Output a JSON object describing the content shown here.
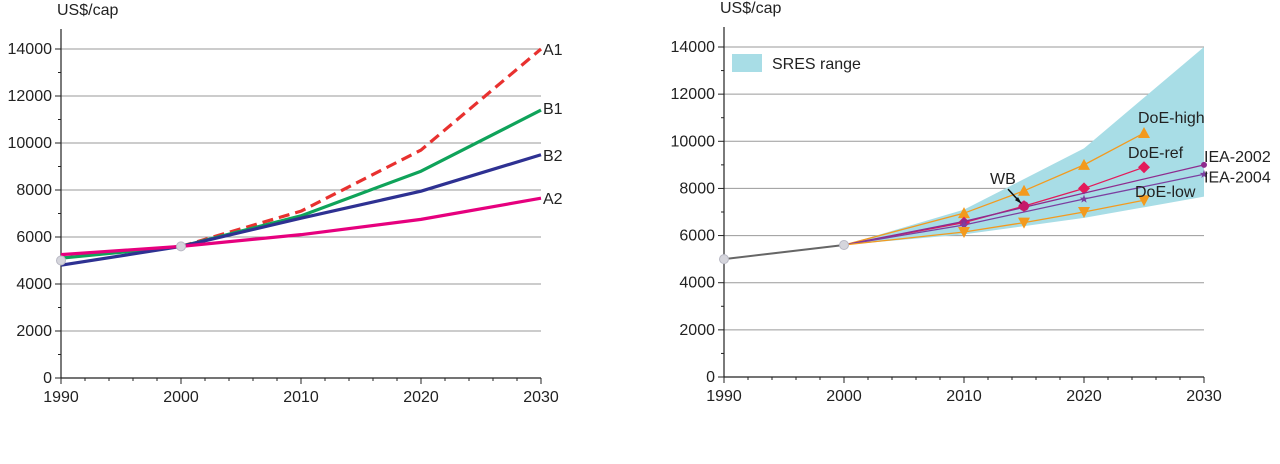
{
  "chart_data": [
    {
      "type": "line",
      "title": "",
      "xlabel": "",
      "ylabel": "US$/cap",
      "xlim": [
        1990,
        2030
      ],
      "ylim": [
        0,
        14000
      ],
      "xticks": [
        1990,
        2000,
        2010,
        2020,
        2030
      ],
      "yticks": [
        0,
        2000,
        4000,
        6000,
        8000,
        10000,
        12000,
        14000
      ],
      "grid": true,
      "markers": [
        {
          "x": 1990,
          "y": 5000
        },
        {
          "x": 2000,
          "y": 5600
        }
      ],
      "series": [
        {
          "name": "A1",
          "color": "#e8312f",
          "dashed": true,
          "x": [
            2000,
            2010,
            2020,
            2030
          ],
          "y": [
            5600,
            7100,
            9700,
            14000
          ]
        },
        {
          "name": "B1",
          "color": "#0fa35a",
          "dashed": false,
          "x": [
            1990,
            2000,
            2010,
            2020,
            2030
          ],
          "y": [
            5100,
            5600,
            6900,
            8800,
            11400
          ]
        },
        {
          "name": "B2",
          "color": "#2e3192",
          "dashed": false,
          "x": [
            1990,
            2000,
            2010,
            2020,
            2030
          ],
          "y": [
            4800,
            5600,
            6800,
            7950,
            9500
          ]
        },
        {
          "name": "A2",
          "color": "#e6007e",
          "dashed": false,
          "x": [
            1990,
            2000,
            2010,
            2020,
            2030
          ],
          "y": [
            5250,
            5600,
            6100,
            6750,
            7650
          ]
        }
      ]
    },
    {
      "type": "line",
      "title": "",
      "xlabel": "",
      "ylabel": "US$/cap",
      "xlim": [
        1990,
        2030
      ],
      "ylim": [
        0,
        14000
      ],
      "xticks": [
        1990,
        2000,
        2010,
        2020,
        2030
      ],
      "yticks": [
        0,
        2000,
        4000,
        6000,
        8000,
        10000,
        12000,
        14000
      ],
      "grid": true,
      "legend": {
        "label": "SRES range",
        "color": "#a8dde6",
        "position": "top-left"
      },
      "band": {
        "color": "#a8dde6",
        "x": [
          2000,
          2010,
          2020,
          2030
        ],
        "upper": [
          5600,
          7100,
          9700,
          14000
        ],
        "lower": [
          5600,
          6050,
          6750,
          7650
        ]
      },
      "history": {
        "color": "#666666",
        "x": [
          1990,
          2000
        ],
        "y": [
          5000,
          5600
        ]
      },
      "markers": [
        {
          "x": 1990,
          "y": 5000
        },
        {
          "x": 2000,
          "y": 5600
        }
      ],
      "series": [
        {
          "name": "DoE-high",
          "color": "#f39a1e",
          "marker": "triangle-up",
          "x": [
            2000,
            2010,
            2015,
            2020,
            2025
          ],
          "y": [
            5600,
            6950,
            7900,
            9000,
            10350
          ]
        },
        {
          "name": "DoE-ref",
          "color": "#e31a5a",
          "marker": "diamond",
          "x": [
            2000,
            2010,
            2015,
            2020,
            2025
          ],
          "y": [
            5600,
            6550,
            7250,
            8000,
            8900
          ]
        },
        {
          "name": "IEA-2002",
          "color": "#8e2c8e",
          "marker": "dot",
          "x": [
            2000,
            2010,
            2030
          ],
          "y": [
            5600,
            6600,
            9000
          ]
        },
        {
          "name": "IEA-2004",
          "color": "#7b3fa0",
          "marker": "star",
          "x": [
            2000,
            2010,
            2020,
            2030
          ],
          "y": [
            5600,
            6450,
            7550,
            8600
          ]
        },
        {
          "name": "DoE-low",
          "color": "#f39a1e",
          "marker": "triangle-down",
          "x": [
            2000,
            2010,
            2015,
            2020,
            2025
          ],
          "y": [
            5600,
            6150,
            6550,
            7000,
            7500
          ]
        },
        {
          "name": "WB",
          "color": "#c51b6a",
          "marker": "circle",
          "x": [
            2015
          ],
          "y": [
            7250
          ]
        }
      ]
    }
  ]
}
